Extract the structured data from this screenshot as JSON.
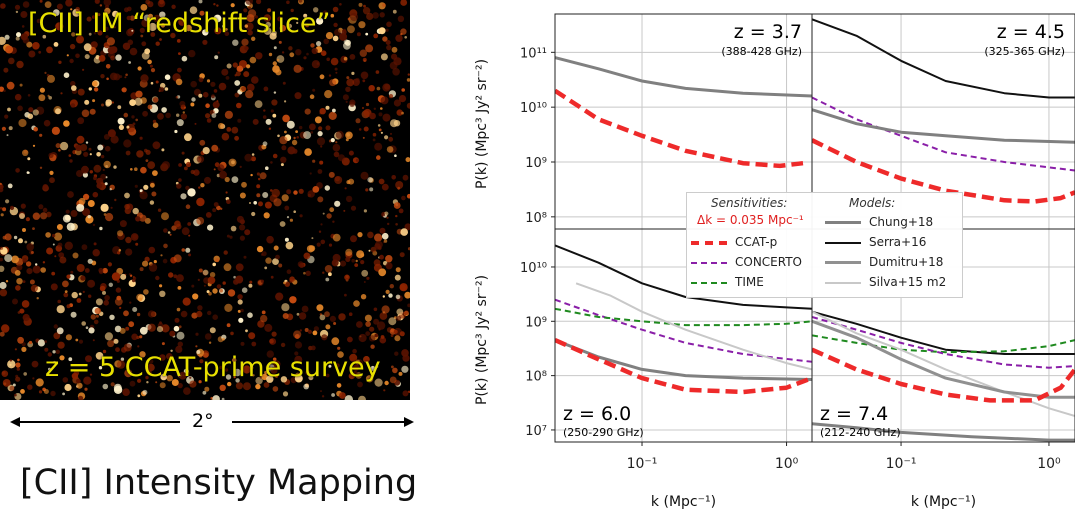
{
  "map": {
    "title": "[CII] IM “redshift slice”",
    "survey": "z = 5 CCAT-prime survey",
    "scale": "2°",
    "caption": "[CII] Intensity Mapping"
  },
  "colors": {
    "ccat": "#ee2a2a",
    "concerto": "#8a1fa8",
    "time": "#1f8a1f",
    "serra": "#111111",
    "chung": "#808080",
    "dumitru": "#909090",
    "silva": "#c8c8c8"
  },
  "legend": {
    "sens_head": "Sensitivities:",
    "dk": "Δk = 0.035 Mpc⁻¹",
    "models_head": "Models:",
    "ccat": "CCAT-p",
    "concerto": "CONCERTO",
    "time": "TIME",
    "chung": "Chung+18",
    "serra": "Serra+16",
    "dumitru": "Dumitru+18",
    "silva": "Silva+15 m2"
  },
  "chart_data": {
    "type": "line",
    "xlabel": "k (Mpc⁻¹)",
    "ylabel": "P(k) (Mpc³ Jy² sr⁻²)",
    "xscale": "log",
    "yscale": "log",
    "xlim": [
      0.025,
      1.5
    ],
    "x_ticks": [
      "10⁻¹",
      "10⁰"
    ],
    "top_y_ticks": [
      "10¹¹",
      "10¹⁰",
      "10⁹",
      "10⁸"
    ],
    "bottom_y_ticks": [
      "10¹⁰",
      "10⁹",
      "10⁸",
      "10⁷"
    ],
    "grid": true,
    "legend_position": "center",
    "panels": [
      {
        "z_label": "z = 3.7",
        "freq": "(388-428 GHz)",
        "ylim": [
          60000000.0,
          500000000000.0
        ],
        "series": [
          {
            "key": "chung",
            "x": [
              0.025,
              0.05,
              0.1,
              0.2,
              0.5,
              1.5
            ],
            "y": [
              80000000000.0,
              50000000000.0,
              30000000000.0,
              22000000000.0,
              18000000000.0,
              16000000000.0
            ]
          },
          {
            "key": "ccat",
            "x": [
              0.025,
              0.05,
              0.1,
              0.2,
              0.5,
              0.9,
              1.3
            ],
            "y": [
              20000000000.0,
              6000000000.0,
              3000000000.0,
              1600000000.0,
              950000000.0,
              850000000.0,
              950000000.0
            ]
          }
        ]
      },
      {
        "z_label": "z = 4.5",
        "freq": "(325-365 GHz)",
        "ylim": [
          60000000.0,
          500000000000.0
        ],
        "series": [
          {
            "key": "serra",
            "x": [
              0.025,
              0.05,
              0.1,
              0.2,
              0.5,
              1,
              1.5
            ],
            "y": [
              400000000000.0,
              200000000000.0,
              70000000000.0,
              30000000000.0,
              18000000000.0,
              15000000000.0,
              15000000000.0
            ]
          },
          {
            "key": "concerto",
            "x": [
              0.025,
              0.05,
              0.1,
              0.2,
              0.5,
              1.5
            ],
            "y": [
              15000000000.0,
              6000000000.0,
              3000000000.0,
              1500000000.0,
              1000000000.0,
              700000000.0
            ]
          },
          {
            "key": "chung",
            "x": [
              0.025,
              0.05,
              0.1,
              0.2,
              0.5,
              1.5
            ],
            "y": [
              9000000000.0,
              5000000000.0,
              3500000000.0,
              3000000000.0,
              2500000000.0,
              2300000000.0
            ]
          },
          {
            "key": "ccat",
            "x": [
              0.025,
              0.05,
              0.1,
              0.2,
              0.5,
              0.8,
              1.2,
              1.5
            ],
            "y": [
              2500000000.0,
              1000000000.0,
              500000000.0,
              300000000.0,
              200000000.0,
              190000000.0,
              220000000.0,
              280000000.0
            ]
          }
        ]
      },
      {
        "z_label": "z = 6.0",
        "freq": "(250-290 GHz)",
        "ylim": [
          6000000.0,
          50000000000.0
        ],
        "series": [
          {
            "key": "serra",
            "x": [
              0.025,
              0.05,
              0.1,
              0.2,
              0.5,
              1,
              1.5
            ],
            "y": [
              25000000000.0,
              12000000000.0,
              5000000000.0,
              2800000000.0,
              2000000000.0,
              1800000000.0,
              1700000000.0
            ]
          },
          {
            "key": "concerto",
            "x": [
              0.025,
              0.05,
              0.1,
              0.2,
              0.5,
              1.5
            ],
            "y": [
              2500000000.0,
              1300000000.0,
              700000000.0,
              400000000.0,
              250000000.0,
              180000000.0
            ]
          },
          {
            "key": "time",
            "x": [
              0.025,
              0.05,
              0.1,
              0.2,
              0.5,
              1,
              1.5
            ],
            "y": [
              1700000000.0,
              1200000000.0,
              1000000000.0,
              850000000.0,
              850000000.0,
              900000000.0,
              1000000000.0
            ]
          },
          {
            "key": "silva",
            "x": [
              0.035,
              0.06,
              0.1,
              0.2,
              0.5,
              1,
              1.5
            ],
            "y": [
              5000000000.0,
              3000000000.0,
              1500000000.0,
              700000000.0,
              300000000.0,
              170000000.0,
              130000000.0
            ]
          },
          {
            "key": "chung",
            "x": [
              0.025,
              0.05,
              0.1,
              0.2,
              0.5,
              1.5
            ],
            "y": [
              450000000.0,
              220000000.0,
              130000000.0,
              100000000.0,
              90000000.0,
              85000000.0
            ]
          },
          {
            "key": "ccat",
            "x": [
              0.025,
              0.05,
              0.1,
              0.2,
              0.5,
              1,
              1.5
            ],
            "y": [
              450000000.0,
              200000000.0,
              90000000.0,
              55000000.0,
              50000000.0,
              60000000.0,
              90000000.0
            ]
          }
        ]
      },
      {
        "z_label": "z = 7.4",
        "freq": "(212-240 GHz)",
        "ylim": [
          6000000.0,
          50000000000.0
        ],
        "series": [
          {
            "key": "serra",
            "x": [
              0.025,
              0.05,
              0.1,
              0.2,
              0.5,
              1,
              1.5
            ],
            "y": [
              1500000000.0,
              900000000.0,
              500000000.0,
              300000000.0,
              250000000.0,
              250000000.0,
              250000000.0
            ]
          },
          {
            "key": "time",
            "x": [
              0.025,
              0.05,
              0.1,
              0.2,
              0.5,
              1,
              1.5
            ],
            "y": [
              550000000.0,
              400000000.0,
              300000000.0,
              270000000.0,
              280000000.0,
              350000000.0,
              450000000.0
            ]
          },
          {
            "key": "concerto",
            "x": [
              0.025,
              0.05,
              0.1,
              0.2,
              0.5,
              1,
              1.5
            ],
            "y": [
              1200000000.0,
              700000000.0,
              400000000.0,
              250000000.0,
              160000000.0,
              140000000.0,
              150000000.0
            ]
          },
          {
            "key": "silva",
            "x": [
              0.025,
              0.05,
              0.1,
              0.2,
              0.5,
              1,
              1.5
            ],
            "y": [
              1500000000.0,
              600000000.0,
              300000000.0,
              130000000.0,
              50000000.0,
              25000000.0,
              18000000.0
            ]
          },
          {
            "key": "dumitru",
            "x": [
              0.025,
              0.05,
              0.1,
              0.2,
              0.5,
              1,
              1.5
            ],
            "y": [
              1000000000.0,
              500000000.0,
              200000000.0,
              90000000.0,
              50000000.0,
              40000000.0,
              40000000.0
            ]
          },
          {
            "key": "ccat",
            "x": [
              0.025,
              0.05,
              0.1,
              0.2,
              0.4,
              0.8,
              1.2,
              1.5
            ],
            "y": [
              300000000.0,
              130000000.0,
              70000000.0,
              45000000.0,
              35000000.0,
              35000000.0,
              60000000.0,
              130000000.0
            ]
          },
          {
            "key": "chung",
            "x": [
              0.025,
              0.05,
              0.1,
              0.3,
              1,
              1.5
            ],
            "y": [
              13000000.0,
              11000000.0,
              9000000.0,
              7500000.0,
              6500000.0,
              6500000.0
            ]
          }
        ]
      }
    ]
  }
}
